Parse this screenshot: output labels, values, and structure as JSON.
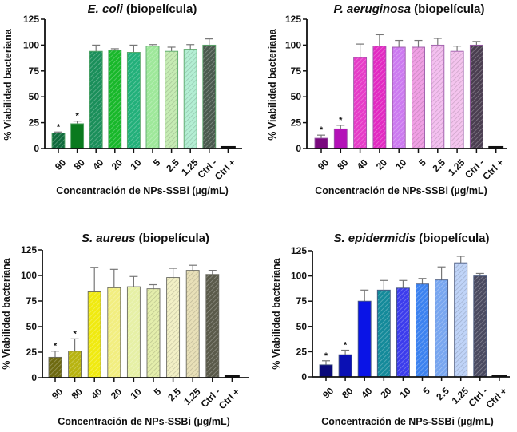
{
  "chart_data": [
    {
      "type": "bar",
      "title_italic": "E. coli",
      "title_rest": " (biopelícula)",
      "xlabel": "Concentración de NPs-SSBi (µg/mL)",
      "ylabel": "% Viabilidad bacteriana",
      "ylim": [
        0,
        125
      ],
      "yticks": [
        0,
        25,
        50,
        75,
        100,
        125
      ],
      "grid": false,
      "categories": [
        "90",
        "80",
        "40",
        "20",
        "10",
        "5",
        "2.5",
        "1.25",
        "Ctrl -",
        "Ctrl +"
      ],
      "values": [
        15,
        24,
        94,
        95,
        93,
        99,
        94,
        96,
        100,
        2
      ],
      "errors": [
        1,
        2.5,
        6,
        1.5,
        7,
        1.5,
        4,
        4.5,
        6,
        0.5
      ],
      "significant": [
        true,
        true,
        false,
        false,
        false,
        false,
        false,
        false,
        false,
        false
      ],
      "colors": [
        "#0f6b3c",
        "#0a7a1e",
        "#1a8f5a",
        "#18b82a",
        "#22b07a",
        "#9ee89a",
        "#c6ecb4",
        "#b4efd4",
        "#4a5a4e",
        "#111111"
      ],
      "hatched": [
        true,
        false,
        true,
        true,
        true,
        true,
        true,
        true,
        true,
        false
      ],
      "edge_color": "#5aa86a"
    },
    {
      "type": "bar",
      "title_italic": "P. aeruginosa",
      "title_rest": " (biopelícula)",
      "xlabel": "Concentración de NPs-SSBi (µg/mL)",
      "ylabel": "% Viabilidad bacteriana",
      "ylim": [
        0,
        125
      ],
      "yticks": [
        0,
        25,
        50,
        75,
        100,
        125
      ],
      "grid": false,
      "categories": [
        "90",
        "80",
        "40",
        "20",
        "10",
        "5",
        "2.5",
        "1.25",
        "Ctrl -",
        "Ctrl +"
      ],
      "values": [
        10,
        19,
        88,
        99,
        98,
        98,
        100,
        94,
        100,
        2
      ],
      "errors": [
        3,
        3.5,
        13,
        11,
        6.5,
        6.5,
        6.5,
        5,
        3.5,
        0.5
      ],
      "significant": [
        true,
        true,
        false,
        false,
        false,
        false,
        false,
        false,
        false,
        false
      ],
      "colors": [
        "#7a0a7e",
        "#b412b8",
        "#e63cc8",
        "#e22ac2",
        "#cc7af0",
        "#f0a0e4",
        "#f4c0f0",
        "#f4c4ee",
        "#4a3e50",
        "#111111"
      ],
      "hatched": [
        false,
        false,
        true,
        true,
        true,
        true,
        true,
        true,
        true,
        false
      ],
      "edge_color": "#9a5aa8"
    },
    {
      "type": "bar",
      "title_italic": "S. aureus",
      "title_rest": " (biopelícula)",
      "xlabel": "Concentración de NPs-SSBi (µg/mL)",
      "ylabel": "% Viabilidad bacteriana",
      "ylim": [
        0,
        125
      ],
      "yticks": [
        0,
        25,
        50,
        75,
        100,
        125
      ],
      "grid": false,
      "categories": [
        "90",
        "80",
        "40",
        "20",
        "10",
        "5",
        "2.5",
        "1.25",
        "Ctrl -",
        "Ctrl +"
      ],
      "values": [
        20,
        26,
        84,
        88,
        89,
        87,
        98,
        105,
        101,
        2
      ],
      "errors": [
        6,
        12,
        24,
        18,
        10,
        4,
        9,
        5,
        4,
        0.5
      ],
      "significant": [
        true,
        true,
        false,
        false,
        false,
        false,
        false,
        false,
        false,
        false
      ],
      "colors": [
        "#6e6a10",
        "#b8b410",
        "#f0ea10",
        "#f2ee80",
        "#e6f0a6",
        "#e4eeac",
        "#f2f0c6",
        "#e8e0b8",
        "#5a5a4a",
        "#111111"
      ],
      "hatched": [
        true,
        true,
        true,
        true,
        true,
        true,
        true,
        true,
        true,
        false
      ],
      "edge_color": "#6a6a60"
    },
    {
      "type": "bar",
      "title_italic": "S. epidermidis",
      "title_rest": " (biopelícula)",
      "xlabel": "Concentración de NPs-SSBi (µg/mL)",
      "ylabel": "% Viabilidad bacteriana",
      "ylim": [
        0,
        125
      ],
      "yticks": [
        0,
        25,
        50,
        75,
        100,
        125
      ],
      "grid": false,
      "categories": [
        "90",
        "80",
        "40",
        "20",
        "10",
        "5",
        "2.5",
        "1.25",
        "Ctrl -",
        "Ctrl +"
      ],
      "values": [
        12,
        22,
        75,
        86,
        88,
        92,
        96,
        113,
        100,
        2
      ],
      "errors": [
        4,
        4.5,
        11,
        9.5,
        7.5,
        5.5,
        13,
        6.5,
        2.5,
        0.5
      ],
      "significant": [
        true,
        true,
        false,
        false,
        false,
        false,
        false,
        false,
        false,
        false
      ],
      "colors": [
        "#0a0a7a",
        "#0a10b4",
        "#0a14e6",
        "#148a9a",
        "#3c3cec",
        "#3c82f0",
        "#78a6f0",
        "#c0d4f8",
        "#4a4a60",
        "#111111"
      ],
      "hatched": [
        false,
        false,
        false,
        true,
        true,
        true,
        true,
        true,
        true,
        false
      ],
      "edge_color": "#4a5a80"
    }
  ]
}
